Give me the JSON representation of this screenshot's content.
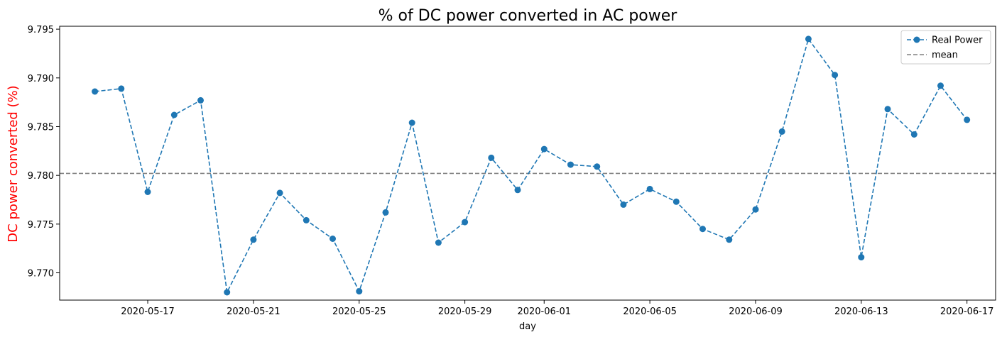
{
  "chart_data": {
    "type": "line",
    "title": "% of DC power converted in AC power",
    "xlabel": "day",
    "ylabel": "DC power converted (%)",
    "ylabel_color": "#ff0000",
    "ylim": [
      9.7672,
      9.7953
    ],
    "xlim": [
      "2020-05-13T16:00",
      "2020-06-18T02:00"
    ],
    "x_ticks": [
      "2020-05-17",
      "2020-05-21",
      "2020-05-25",
      "2020-05-29",
      "2020-06-01",
      "2020-06-05",
      "2020-06-09",
      "2020-06-13",
      "2020-06-17"
    ],
    "y_ticks": [
      "9.770",
      "9.775",
      "9.780",
      "9.785",
      "9.790",
      "9.795"
    ],
    "legend_position": "top-right",
    "grid": false,
    "series": [
      {
        "name": "Real Power",
        "color": "#1f77b4",
        "line_style": "dashed",
        "marker": "circle",
        "x": [
          "2020-05-15",
          "2020-05-16",
          "2020-05-17",
          "2020-05-18",
          "2020-05-19",
          "2020-05-20",
          "2020-05-21",
          "2020-05-22",
          "2020-05-23",
          "2020-05-24",
          "2020-05-25",
          "2020-05-26",
          "2020-05-27",
          "2020-05-28",
          "2020-05-29",
          "2020-05-30",
          "2020-05-31",
          "2020-06-01",
          "2020-06-02",
          "2020-06-03",
          "2020-06-04",
          "2020-06-05",
          "2020-06-06",
          "2020-06-07",
          "2020-06-08",
          "2020-06-09",
          "2020-06-10",
          "2020-06-11",
          "2020-06-12",
          "2020-06-13",
          "2020-06-14",
          "2020-06-15",
          "2020-06-16",
          "2020-06-17"
        ],
        "values": [
          9.7886,
          9.7889,
          9.7783,
          9.7862,
          9.7877,
          9.768,
          9.7734,
          9.7782,
          9.7754,
          9.7735,
          9.7681,
          9.7762,
          9.7854,
          9.7731,
          9.7752,
          9.7818,
          9.7785,
          9.7827,
          9.7811,
          9.7809,
          9.777,
          9.7786,
          9.7773,
          9.7745,
          9.7734,
          9.7765,
          9.7845,
          9.794,
          9.7903,
          9.7716,
          9.7868,
          9.7842,
          9.7892,
          9.7857
        ]
      }
    ],
    "reference_lines": [
      {
        "name": "mean",
        "color": "#808080",
        "line_style": "dashed",
        "value": 9.7802
      }
    ]
  }
}
